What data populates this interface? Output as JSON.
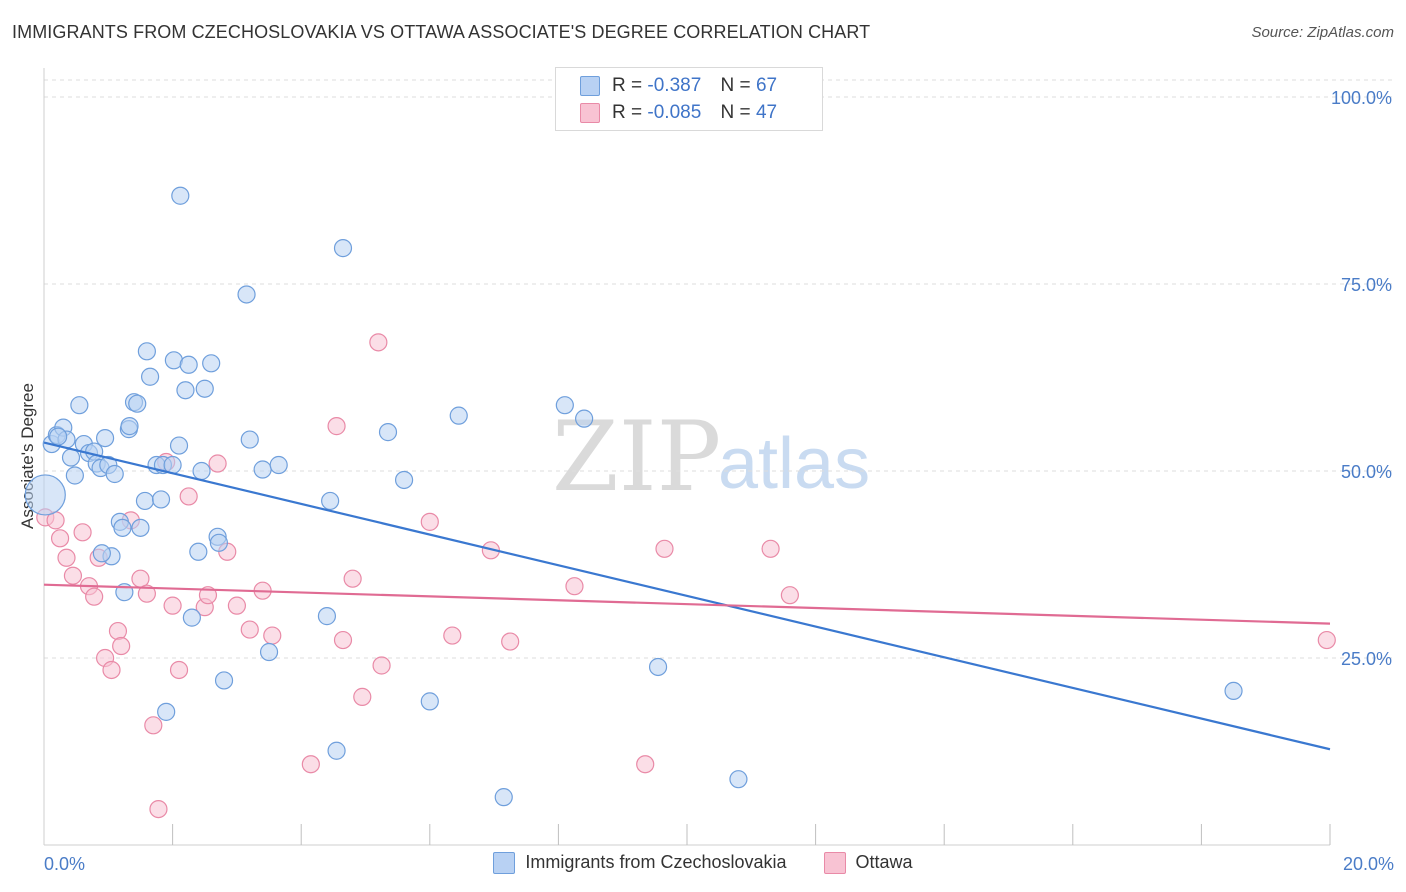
{
  "title": "IMMIGRANTS FROM CZECHOSLOVAKIA VS OTTAWA ASSOCIATE'S DEGREE CORRELATION CHART",
  "source": "Source: ZipAtlas.com",
  "watermark": {
    "zip": "ZIP",
    "atlas": "atlas"
  },
  "legend": {
    "rows": [
      {
        "r_label": "R =",
        "r_value": "-0.387",
        "n_label": "N =",
        "n_value": "67"
      },
      {
        "r_label": "R =",
        "r_value": "-0.085",
        "n_label": "N =",
        "n_value": "47"
      }
    ]
  },
  "colors": {
    "blue_fill": "#b8d1f3",
    "blue_stroke": "#6f9fdc",
    "blue_line": "#3a78d0",
    "pink_fill": "#f8c3d3",
    "pink_stroke": "#e98aa7",
    "pink_line": "#e06b93",
    "grid": "#dddddd",
    "axis_text": "#4a7cc7"
  },
  "chart_data": {
    "type": "scatter",
    "title": "IMMIGRANTS FROM CZECHOSLOVAKIA VS OTTAWA ASSOCIATE'S DEGREE CORRELATION CHART",
    "xlabel": "",
    "ylabel": "Associate's Degree",
    "xlim": [
      0,
      20
    ],
    "ylim": [
      0,
      100
    ],
    "x_tick_labels": [
      "0.0%",
      "20.0%"
    ],
    "y_ticks": [
      25,
      50,
      75,
      100
    ],
    "y_tick_labels": [
      "25.0%",
      "50.0%",
      "75.0%",
      "100.0%"
    ],
    "grid": true,
    "series": [
      {
        "name": "Immigrants from Czechoslovakia",
        "color": "#6f9fdc",
        "trend": {
          "x": [
            0,
            20
          ],
          "y": [
            53.8,
            12.8
          ]
        },
        "points": [
          [
            0.02,
            46.8
          ],
          [
            0.12,
            53.6
          ],
          [
            0.2,
            54.8
          ],
          [
            0.3,
            55.8
          ],
          [
            0.35,
            54.2
          ],
          [
            0.42,
            51.8
          ],
          [
            0.48,
            49.4
          ],
          [
            0.55,
            58.8
          ],
          [
            0.62,
            53.6
          ],
          [
            0.7,
            52.4
          ],
          [
            0.78,
            52.6
          ],
          [
            0.82,
            51.0
          ],
          [
            0.88,
            50.4
          ],
          [
            0.95,
            54.4
          ],
          [
            1.0,
            50.8
          ],
          [
            1.05,
            38.6
          ],
          [
            1.1,
            49.6
          ],
          [
            1.18,
            43.2
          ],
          [
            1.22,
            42.4
          ],
          [
            1.32,
            55.6
          ],
          [
            1.33,
            56.0
          ],
          [
            1.4,
            59.2
          ],
          [
            1.45,
            59.0
          ],
          [
            1.5,
            42.4
          ],
          [
            1.57,
            46.0
          ],
          [
            1.6,
            66.0
          ],
          [
            1.65,
            62.6
          ],
          [
            1.75,
            50.8
          ],
          [
            1.82,
            46.2
          ],
          [
            1.85,
            50.8
          ],
          [
            1.9,
            17.8
          ],
          [
            2.0,
            50.8
          ],
          [
            2.02,
            64.8
          ],
          [
            2.1,
            53.4
          ],
          [
            2.12,
            86.8
          ],
          [
            2.2,
            60.8
          ],
          [
            2.25,
            64.2
          ],
          [
            2.3,
            30.4
          ],
          [
            2.4,
            39.2
          ],
          [
            2.45,
            50.0
          ],
          [
            2.5,
            61.0
          ],
          [
            2.6,
            64.4
          ],
          [
            2.7,
            41.2
          ],
          [
            2.72,
            40.4
          ],
          [
            3.15,
            73.6
          ],
          [
            3.2,
            54.2
          ],
          [
            3.4,
            50.2
          ],
          [
            3.5,
            25.8
          ],
          [
            3.65,
            50.8
          ],
          [
            4.4,
            30.6
          ],
          [
            4.45,
            46.0
          ],
          [
            4.55,
            12.6
          ],
          [
            4.65,
            79.8
          ],
          [
            5.35,
            55.2
          ],
          [
            5.6,
            48.8
          ],
          [
            6.0,
            19.2
          ],
          [
            6.45,
            57.4
          ],
          [
            7.15,
            6.4
          ],
          [
            8.1,
            58.8
          ],
          [
            8.4,
            57.0
          ],
          [
            9.55,
            23.8
          ],
          [
            10.8,
            8.8
          ],
          [
            18.5,
            20.6
          ],
          [
            0.22,
            54.6
          ],
          [
            0.9,
            39.0
          ],
          [
            1.25,
            33.8
          ],
          [
            2.8,
            22.0
          ]
        ]
      },
      {
        "name": "Ottawa",
        "color": "#e98aa7",
        "trend": {
          "x": [
            0,
            20
          ],
          "y": [
            34.8,
            29.6
          ]
        },
        "points": [
          [
            0.02,
            43.8
          ],
          [
            0.18,
            43.4
          ],
          [
            0.25,
            41.0
          ],
          [
            0.35,
            38.4
          ],
          [
            0.45,
            36.0
          ],
          [
            0.6,
            41.8
          ],
          [
            0.7,
            34.6
          ],
          [
            0.78,
            33.2
          ],
          [
            0.85,
            38.4
          ],
          [
            0.95,
            25.0
          ],
          [
            1.05,
            23.4
          ],
          [
            1.15,
            28.6
          ],
          [
            1.2,
            26.6
          ],
          [
            1.35,
            43.4
          ],
          [
            1.5,
            35.6
          ],
          [
            1.6,
            33.6
          ],
          [
            1.7,
            16.0
          ],
          [
            1.78,
            4.8
          ],
          [
            1.9,
            51.2
          ],
          [
            2.0,
            32.0
          ],
          [
            2.1,
            23.4
          ],
          [
            2.25,
            46.6
          ],
          [
            2.5,
            31.8
          ],
          [
            2.55,
            33.4
          ],
          [
            2.7,
            51.0
          ],
          [
            2.85,
            39.2
          ],
          [
            3.0,
            32.0
          ],
          [
            3.2,
            28.8
          ],
          [
            3.4,
            34.0
          ],
          [
            3.55,
            28.0
          ],
          [
            4.15,
            10.8
          ],
          [
            4.55,
            56.0
          ],
          [
            4.65,
            27.4
          ],
          [
            4.8,
            35.6
          ],
          [
            4.95,
            19.8
          ],
          [
            5.2,
            67.2
          ],
          [
            5.25,
            24.0
          ],
          [
            6.0,
            43.2
          ],
          [
            6.35,
            28.0
          ],
          [
            6.95,
            39.4
          ],
          [
            7.25,
            27.2
          ],
          [
            8.25,
            34.6
          ],
          [
            9.35,
            10.8
          ],
          [
            9.65,
            39.6
          ],
          [
            11.3,
            39.6
          ],
          [
            11.6,
            33.4
          ],
          [
            19.95,
            27.4
          ]
        ]
      }
    ]
  },
  "bottom_legend": [
    {
      "label": "Immigrants from Czechoslovakia"
    },
    {
      "label": "Ottawa"
    }
  ]
}
